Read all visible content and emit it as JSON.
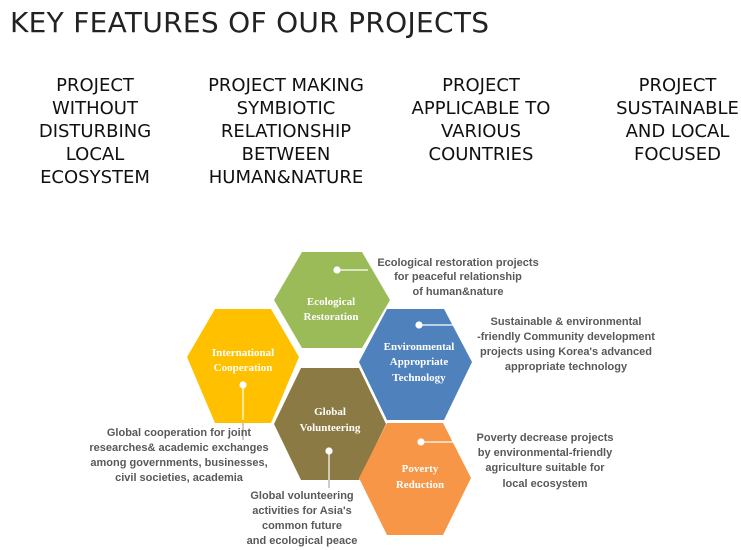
{
  "title": "KEY FEATURES OF OUR PROJECTS",
  "features": [
    "PROJECT\nWITHOUT\nDISTURBING\nLOCAL\nECOSYSTEM",
    "PROJECT MAKING\nSYMBIOTIC\nRELATIONSHIP\nBETWEEN\nHUMAN&NATURE",
    "PROJECT\nAPPLICABLE TO\nVARIOUS\nCOUNTRIES",
    "PROJECT\nSUSTAINABLE\nAND LOCAL\nFOCUSED"
  ],
  "hexagons": {
    "ecological": {
      "line1": "Ecological",
      "line2": "Restoration",
      "color": "#9BBB59"
    },
    "international": {
      "line1": "International",
      "line2": "Cooperation",
      "color": "#FFC000"
    },
    "environmental": {
      "line1": "Environmental",
      "line2": "Appropriate",
      "line3": "Technology",
      "color": "#4F81BD"
    },
    "global": {
      "line1": "Global",
      "line2": "Volunteering",
      "color": "#8C7A45"
    },
    "poverty": {
      "line1": "Poverty",
      "line2": "Reduction",
      "color": "#F79646"
    }
  },
  "descriptions": {
    "ecological": [
      "Ecological restoration projects",
      "for peaceful relationship",
      "of human&nature"
    ],
    "environmental": [
      "Sustainable & environmental",
      "-friendly  Community development",
      "projects using Korea's advanced",
      "appropriate technology"
    ],
    "international": [
      "Global cooperation for joint",
      "researches& academic exchanges",
      "among governments, businesses,",
      "civil societies, academia"
    ],
    "poverty": [
      "Poverty decrease projects",
      "by environmental-friendly",
      "agriculture suitable for",
      "local ecosystem"
    ],
    "global": [
      "Global volunteering",
      "activities for Asia's",
      "common future",
      "and ecological peace"
    ]
  }
}
